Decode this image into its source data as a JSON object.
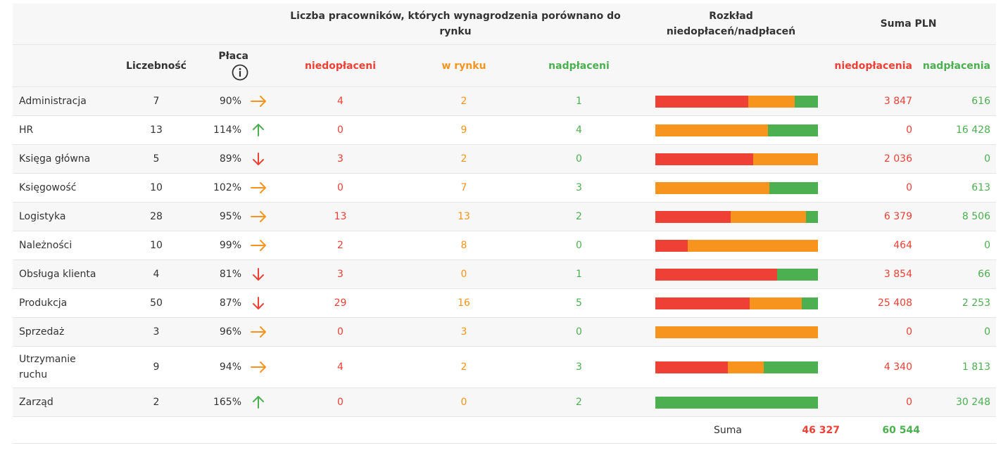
{
  "header": {
    "group_count_label": "Liczba pracowników, których wynagrodzenia porównano do rynku",
    "group_dist_label_1": "Rozkład",
    "group_dist_label_2": "niedopłaceń/nadpłaceń",
    "group_sum_label": "Suma PLN",
    "col_count": "Liczebność",
    "col_pay": "Płaca",
    "col_under": "niedopłaceni",
    "col_market": "w rynku",
    "col_over": "nadpłaceni",
    "col_underpay": "niedopłacenia",
    "col_overpay": "nadpłacenia"
  },
  "colors": {
    "red": "#ee4035",
    "orange": "#f7941d",
    "green": "#4caf50"
  },
  "rows": [
    {
      "name": "Administracja",
      "count": "7",
      "pay": "90%",
      "trend": "right",
      "under": "4",
      "market": "2",
      "over": "1",
      "bar": [
        4,
        2,
        1
      ],
      "underpay": "3 847",
      "overpay": "616"
    },
    {
      "name": "HR",
      "count": "13",
      "pay": "114%",
      "trend": "up",
      "under": "0",
      "market": "9",
      "over": "4",
      "bar": [
        0,
        9,
        4
      ],
      "underpay": "0",
      "overpay": "16 428"
    },
    {
      "name": "Księga główna",
      "count": "5",
      "pay": "89%",
      "trend": "down",
      "under": "3",
      "market": "2",
      "over": "0",
      "bar": [
        3,
        2,
        0
      ],
      "underpay": "2 036",
      "overpay": "0"
    },
    {
      "name": "Księgowość",
      "count": "10",
      "pay": "102%",
      "trend": "right",
      "under": "0",
      "market": "7",
      "over": "3",
      "bar": [
        0,
        7,
        3
      ],
      "underpay": "0",
      "overpay": "613"
    },
    {
      "name": "Logistyka",
      "count": "28",
      "pay": "95%",
      "trend": "right",
      "under": "13",
      "market": "13",
      "over": "2",
      "bar": [
        13,
        13,
        2
      ],
      "underpay": "6 379",
      "overpay": "8 506"
    },
    {
      "name": "Należności",
      "count": "10",
      "pay": "99%",
      "trend": "right",
      "under": "2",
      "market": "8",
      "over": "0",
      "bar": [
        2,
        8,
        0
      ],
      "underpay": "464",
      "overpay": "0"
    },
    {
      "name": "Obsługa klienta",
      "count": "4",
      "pay": "81%",
      "trend": "down",
      "under": "3",
      "market": "0",
      "over": "1",
      "bar": [
        3,
        0,
        1
      ],
      "underpay": "3 854",
      "overpay": "66"
    },
    {
      "name": "Produkcja",
      "count": "50",
      "pay": "87%",
      "trend": "down",
      "under": "29",
      "market": "16",
      "over": "5",
      "bar": [
        29,
        16,
        5
      ],
      "underpay": "25 408",
      "overpay": "2 253"
    },
    {
      "name": "Sprzedaż",
      "count": "3",
      "pay": "96%",
      "trend": "right",
      "under": "0",
      "market": "3",
      "over": "0",
      "bar": [
        0,
        3,
        0
      ],
      "underpay": "0",
      "overpay": "0"
    },
    {
      "name": "Utrzymanie ruchu",
      "count": "9",
      "pay": "94%",
      "trend": "right",
      "under": "4",
      "market": "2",
      "over": "3",
      "bar": [
        4,
        2,
        3
      ],
      "underpay": "4 340",
      "overpay": "1 813"
    },
    {
      "name": "Zarząd",
      "count": "2",
      "pay": "165%",
      "trend": "up",
      "under": "0",
      "market": "0",
      "over": "2",
      "bar": [
        0,
        0,
        2
      ],
      "underpay": "0",
      "overpay": "30 248"
    }
  ],
  "footer": {
    "label": "Suma",
    "underpay_total": "46 327",
    "overpay_total": "60 544"
  }
}
